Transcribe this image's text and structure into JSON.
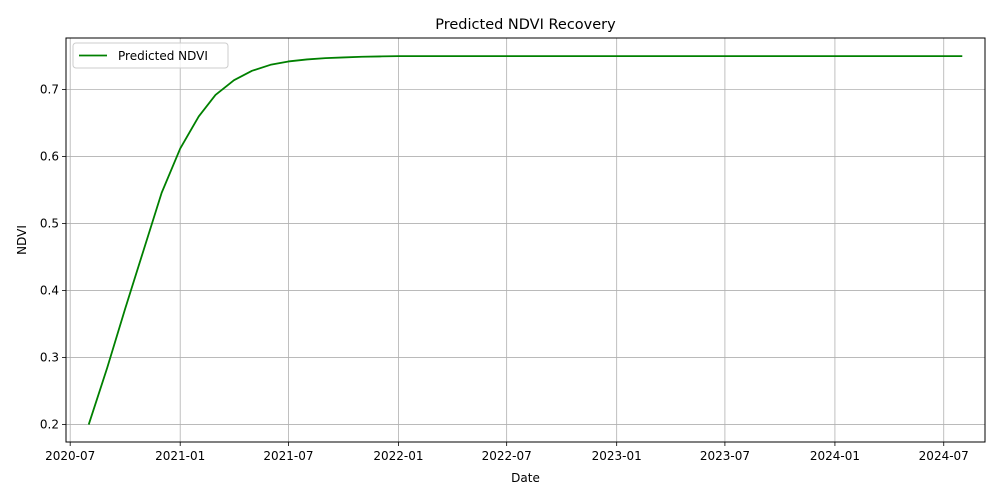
{
  "chart_data": {
    "type": "line",
    "title": "Predicted NDVI Recovery",
    "xlabel": "Date",
    "ylabel": "NDVI",
    "xlim": [
      "2020-06-24",
      "2024-09-08"
    ],
    "ylim": [
      0.174,
      0.777
    ],
    "x_ticks": [
      "2020-07",
      "2021-01",
      "2021-07",
      "2022-01",
      "2022-07",
      "2023-01",
      "2023-07",
      "2024-01",
      "2024-07"
    ],
    "y_ticks": [
      "0.2",
      "0.3",
      "0.4",
      "0.5",
      "0.6",
      "0.7"
    ],
    "grid": true,
    "legend_position": "upper left",
    "line_color": "#008000",
    "series": [
      {
        "name": "Predicted NDVI",
        "x": [
          "2020-08-01",
          "2020-09-01",
          "2020-10-01",
          "2020-11-01",
          "2020-12-01",
          "2021-01-01",
          "2021-02-01",
          "2021-03-01",
          "2021-04-01",
          "2021-05-01",
          "2021-06-01",
          "2021-07-01",
          "2021-08-01",
          "2021-09-01",
          "2021-10-01",
          "2021-11-01",
          "2021-12-01",
          "2022-01-01",
          "2022-02-01",
          "2022-03-01",
          "2022-04-01",
          "2022-05-01",
          "2022-06-01",
          "2022-07-01",
          "2022-08-01",
          "2022-09-01",
          "2022-10-01",
          "2022-11-01",
          "2022-12-01",
          "2023-01-01",
          "2023-02-01",
          "2023-03-01",
          "2023-04-01",
          "2023-05-01",
          "2023-06-01",
          "2023-07-01",
          "2023-08-01",
          "2023-09-01",
          "2023-10-01",
          "2023-11-01",
          "2023-12-01",
          "2024-01-01",
          "2024-02-01",
          "2024-03-01",
          "2024-04-01",
          "2024-05-01",
          "2024-06-01",
          "2024-07-01",
          "2024-08-01"
        ],
        "y": [
          0.2,
          0.285,
          0.373,
          0.461,
          0.546,
          0.612,
          0.66,
          0.692,
          0.714,
          0.728,
          0.737,
          0.742,
          0.745,
          0.747,
          0.748,
          0.749,
          0.7495,
          0.75,
          0.75,
          0.75,
          0.75,
          0.75,
          0.75,
          0.75,
          0.75,
          0.75,
          0.75,
          0.75,
          0.75,
          0.75,
          0.75,
          0.75,
          0.75,
          0.75,
          0.75,
          0.75,
          0.75,
          0.75,
          0.75,
          0.75,
          0.75,
          0.75,
          0.75,
          0.75,
          0.75,
          0.75,
          0.75,
          0.75,
          0.75
        ]
      }
    ]
  }
}
